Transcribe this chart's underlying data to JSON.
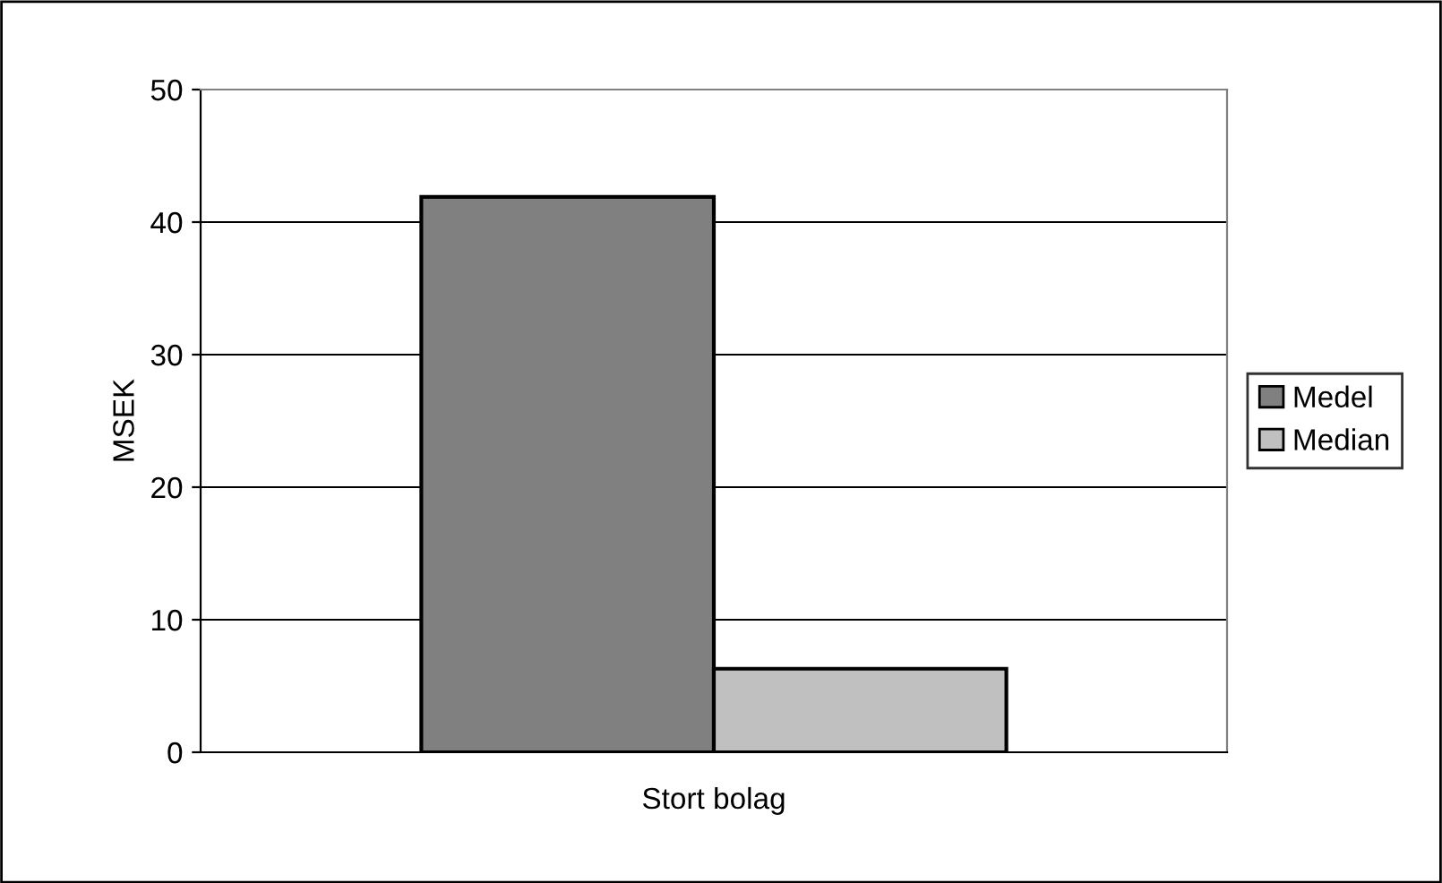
{
  "chart_data": {
    "type": "bar",
    "ylabel": "MSEK",
    "categories": [
      "Stort bolag"
    ],
    "series": [
      {
        "name": "Medel",
        "color": "#808080",
        "values": [
          41.9
        ]
      },
      {
        "name": "Median",
        "color": "#c0c0c0",
        "values": [
          6.3
        ]
      }
    ],
    "ylim": [
      0,
      50
    ],
    "yticks": [
      0,
      10,
      20,
      30,
      40,
      50
    ],
    "grid": "y",
    "legend": "right"
  }
}
